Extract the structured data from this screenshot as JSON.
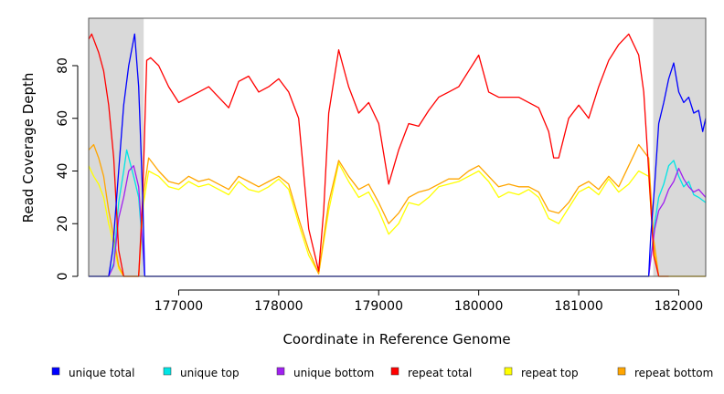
{
  "chart_data": {
    "type": "line",
    "xlabel": "Coordinate in Reference Genome",
    "ylabel": "Read Coverage Depth",
    "xlim": [
      176100,
      182270
    ],
    "ylim": [
      0,
      98
    ],
    "x_ticks": [
      177000,
      178000,
      179000,
      180000,
      181000,
      182000
    ],
    "x_tick_labels": [
      "177000",
      "178000",
      "179000",
      "180000",
      "181000",
      "182000"
    ],
    "y_ticks": [
      0,
      20,
      40,
      60,
      80
    ],
    "y_tick_labels": [
      "0",
      "20",
      "40",
      "60",
      "80"
    ],
    "grid": false,
    "legend_position": "bottom",
    "shaded_regions": [
      {
        "x0": 176100,
        "x1": 176650,
        "color": "#d9d9d9"
      },
      {
        "x0": 181745,
        "x1": 182270,
        "color": "#d9d9d9"
      }
    ],
    "series": [
      {
        "name": "unique total",
        "color": "#0000ff",
        "x": [
          176100,
          176300,
          176340,
          176400,
          176450,
          176500,
          176560,
          176600,
          176640,
          176660,
          176700,
          181600,
          181700,
          181720,
          181760,
          181800,
          181850,
          181900,
          181950,
          182000,
          182050,
          182100,
          182150,
          182200,
          182240,
          182270
        ],
        "y": [
          0,
          0,
          10,
          40,
          65,
          80,
          92,
          72,
          30,
          0,
          0,
          0,
          0,
          15,
          35,
          58,
          66,
          75,
          81,
          70,
          66,
          68,
          62,
          63,
          55,
          60
        ]
      },
      {
        "name": "unique top",
        "color": "#00e5e5",
        "x": [
          176100,
          176300,
          176350,
          176400,
          176450,
          176480,
          176550,
          176600,
          176640,
          176660,
          181700,
          181760,
          181800,
          181850,
          181900,
          181950,
          182000,
          182050,
          182100,
          182150,
          182200,
          182270
        ],
        "y": [
          0,
          0,
          5,
          28,
          40,
          48,
          38,
          30,
          10,
          0,
          0,
          20,
          30,
          35,
          42,
          44,
          38,
          34,
          36,
          31,
          30,
          28
        ]
      },
      {
        "name": "unique bottom",
        "color": "#a020f0",
        "x": [
          176100,
          176300,
          176350,
          176400,
          176450,
          176500,
          176550,
          176600,
          176640,
          176660,
          181700,
          181760,
          181800,
          181850,
          181900,
          181950,
          182000,
          182050,
          182100,
          182150,
          182200,
          182270
        ],
        "y": [
          0,
          0,
          4,
          22,
          30,
          40,
          42,
          34,
          12,
          0,
          0,
          18,
          25,
          28,
          33,
          36,
          41,
          37,
          34,
          32,
          33,
          30
        ]
      },
      {
        "name": "repeat total",
        "color": "#ff0000",
        "x": [
          176100,
          176130,
          176200,
          176250,
          176300,
          176350,
          176400,
          176450,
          176500,
          176550,
          176600,
          176640,
          176680,
          176720,
          176800,
          176900,
          177000,
          177100,
          177200,
          177300,
          177400,
          177500,
          177600,
          177700,
          177800,
          177900,
          178000,
          178100,
          178200,
          178300,
          178400,
          178450,
          178500,
          178600,
          178700,
          178800,
          178900,
          179000,
          179100,
          179200,
          179300,
          179400,
          179500,
          179600,
          179700,
          179800,
          179900,
          180000,
          180100,
          180200,
          180300,
          180400,
          180500,
          180600,
          180700,
          180750,
          180800,
          180900,
          181000,
          181100,
          181200,
          181300,
          181400,
          181500,
          181600,
          181650,
          181700,
          181750,
          181800,
          181850,
          181900
        ],
        "y": [
          90,
          92,
          85,
          78,
          65,
          45,
          10,
          0,
          0,
          0,
          0,
          30,
          82,
          83,
          80,
          72,
          66,
          68,
          70,
          72,
          68,
          64,
          74,
          76,
          70,
          72,
          75,
          70,
          60,
          18,
          2,
          25,
          62,
          86,
          72,
          62,
          66,
          58,
          35,
          48,
          58,
          57,
          63,
          68,
          70,
          72,
          78,
          84,
          70,
          68,
          68,
          68,
          66,
          64,
          55,
          45,
          45,
          60,
          65,
          60,
          72,
          82,
          88,
          92,
          84,
          70,
          40,
          8,
          0,
          0,
          0
        ]
      },
      {
        "name": "repeat top",
        "color": "#ffff00",
        "x": [
          176100,
          176150,
          176200,
          176250,
          176300,
          176350,
          176400,
          176450,
          176500,
          176550,
          176600,
          176650,
          176700,
          176800,
          176900,
          177000,
          177100,
          177200,
          177300,
          177400,
          177500,
          177600,
          177700,
          177800,
          177900,
          178000,
          178100,
          178200,
          178300,
          178400,
          178500,
          178600,
          178700,
          178800,
          178900,
          179000,
          179100,
          179200,
          179300,
          179400,
          179500,
          179600,
          179700,
          179800,
          179900,
          180000,
          180100,
          180200,
          180300,
          180400,
          180500,
          180600,
          180700,
          180800,
          180900,
          181000,
          181100,
          181200,
          181300,
          181400,
          181500,
          181600,
          181700,
          181750,
          181800,
          181900,
          182270
        ],
        "y": [
          42,
          38,
          35,
          30,
          20,
          12,
          3,
          0,
          0,
          0,
          0,
          28,
          40,
          38,
          34,
          33,
          36,
          34,
          35,
          33,
          31,
          36,
          33,
          32,
          34,
          37,
          33,
          20,
          8,
          1,
          25,
          43,
          36,
          30,
          32,
          25,
          16,
          20,
          28,
          27,
          30,
          34,
          35,
          36,
          38,
          40,
          36,
          30,
          32,
          31,
          33,
          30,
          22,
          20,
          26,
          32,
          34,
          31,
          37,
          32,
          35,
          40,
          38,
          10,
          0,
          0,
          0
        ]
      },
      {
        "name": "repeat bottom",
        "color": "#ffa500",
        "x": [
          176100,
          176150,
          176200,
          176250,
          176300,
          176350,
          176400,
          176450,
          176500,
          176550,
          176600,
          176650,
          176700,
          176800,
          176900,
          177000,
          177100,
          177200,
          177300,
          177400,
          177500,
          177600,
          177700,
          177800,
          177900,
          178000,
          178100,
          178200,
          178300,
          178400,
          178500,
          178600,
          178700,
          178800,
          178900,
          179000,
          179100,
          179200,
          179300,
          179400,
          179500,
          179600,
          179700,
          179800,
          179900,
          180000,
          180100,
          180200,
          180300,
          180400,
          180500,
          180600,
          180700,
          180800,
          180900,
          181000,
          181100,
          181200,
          181300,
          181400,
          181500,
          181600,
          181700,
          181750,
          181800,
          181900,
          182270
        ],
        "y": [
          48,
          50,
          45,
          38,
          25,
          15,
          4,
          0,
          0,
          0,
          0,
          32,
          45,
          40,
          36,
          35,
          38,
          36,
          37,
          35,
          33,
          38,
          36,
          34,
          36,
          38,
          35,
          22,
          10,
          1,
          28,
          44,
          38,
          33,
          35,
          28,
          20,
          24,
          30,
          32,
          33,
          35,
          37,
          37,
          40,
          42,
          38,
          34,
          35,
          34,
          34,
          32,
          25,
          24,
          28,
          34,
          36,
          33,
          38,
          34,
          42,
          50,
          45,
          14,
          0,
          0,
          0
        ]
      }
    ]
  }
}
